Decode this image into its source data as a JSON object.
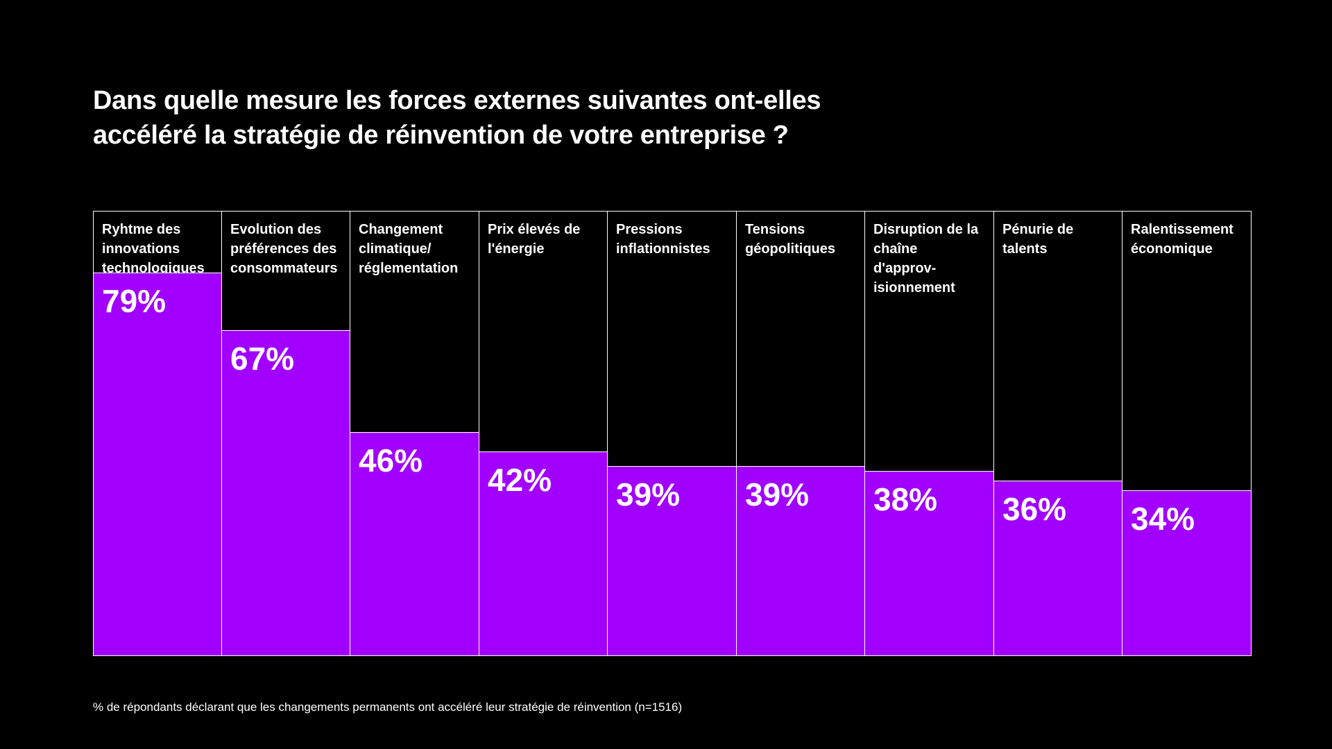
{
  "title_lines": [
    "Dans quelle mesure les forces externes suivantes ont-elles",
    "accéléré la stratégie de réinvention de votre entreprise ?"
  ],
  "chart_data": {
    "type": "bar",
    "title": "Dans quelle mesure les forces externes suivantes ont-elles accéléré la stratégie de réinvention de votre entreprise ?",
    "categories": [
      "Ryhtme des\ninnovations\ntechnologiques",
      "Evolution des\npréférences des\nconsommateurs",
      "Changement\nclimatique/\nréglementation",
      "Prix élevés de\nl'énergie",
      "Pressions\ninflationnistes",
      "Tensions\ngéopolitiques",
      "Disruption de la\nchaîne\nd'approv-\nisionnement",
      "Pénurie de\ntalents",
      "Ralentissement\néconomique"
    ],
    "values": [
      79,
      67,
      46,
      42,
      39,
      39,
      38,
      36,
      34
    ],
    "value_labels": [
      "79%",
      "67%",
      "46%",
      "42%",
      "39%",
      "39%",
      "38%",
      "36%",
      "34%"
    ],
    "xlabel": "",
    "ylabel": "",
    "ylim": [
      0,
      92
    ],
    "unit": "%",
    "grid": false,
    "legend": "none",
    "colors": {
      "bar": "#a100ff",
      "background": "#000000",
      "border": "#ffffff",
      "text": "#ffffff"
    }
  },
  "footnote": "% de répondants déclarant que les changements permanents ont accéléré leur stratégie de réinvention (n=1516)"
}
